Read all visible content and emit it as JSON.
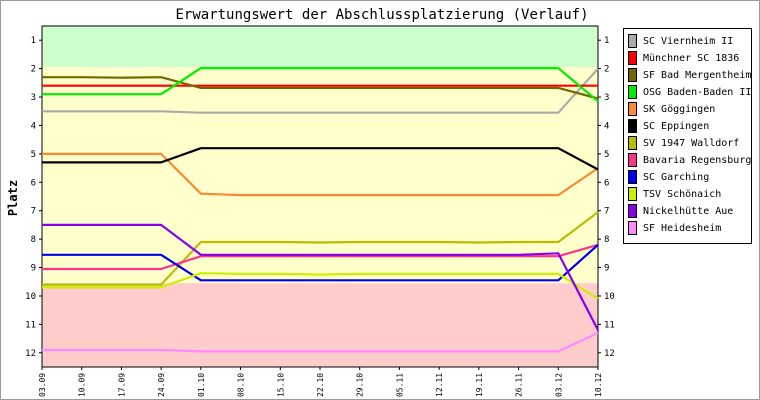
{
  "chart_data": {
    "type": "line",
    "title": "Erwartungswert der Abschlussplatzierung (Verlauf)",
    "ylabel": "Platz",
    "xlabel": "",
    "categories": [
      "03.09",
      "10.09",
      "17.09",
      "24.09",
      "01.10",
      "08.10",
      "15.10",
      "22.10",
      "29.10",
      "05.11",
      "12.11",
      "19.11",
      "26.11",
      "03.12",
      "10.12"
    ],
    "y_ticks": [
      1,
      2,
      3,
      4,
      5,
      6,
      7,
      8,
      9,
      10,
      11,
      12
    ],
    "ylim": [
      12.5,
      0.5
    ],
    "y_inverted": true,
    "grid": false,
    "legend_position": "right",
    "zones": [
      {
        "from": 0.5,
        "to": 1.95,
        "color": "#ccffcc"
      },
      {
        "from": 1.95,
        "to": 9.55,
        "color": "#ffffcc"
      },
      {
        "from": 9.55,
        "to": 12.5,
        "color": "#ffcccc"
      }
    ],
    "series": [
      {
        "name": "SC Viernheim II",
        "color": "#aaaaaa",
        "values": [
          3.5,
          3.5,
          3.5,
          3.5,
          3.55,
          3.55,
          3.55,
          3.55,
          3.55,
          3.55,
          3.55,
          3.55,
          3.55,
          3.55,
          2.0
        ]
      },
      {
        "name": "Münchner SC 1836",
        "color": "#ff0000",
        "values": [
          2.6,
          2.6,
          2.6,
          2.6,
          2.6,
          2.6,
          2.6,
          2.6,
          2.6,
          2.6,
          2.6,
          2.6,
          2.6,
          2.6,
          2.6
        ]
      },
      {
        "name": "SF Bad Mergentheim",
        "color": "#776600",
        "values": [
          2.3,
          2.3,
          2.32,
          2.3,
          2.68,
          2.68,
          2.68,
          2.68,
          2.68,
          2.68,
          2.68,
          2.68,
          2.68,
          2.68,
          3.05
        ]
      },
      {
        "name": "OSG Baden-Baden II",
        "color": "#00ee00",
        "values": [
          2.9,
          2.9,
          2.9,
          2.9,
          1.98,
          1.98,
          1.98,
          1.98,
          1.98,
          1.98,
          1.98,
          1.98,
          1.98,
          1.98,
          3.15
        ]
      },
      {
        "name": "SK Göggingen",
        "color": "#ff8833",
        "values": [
          5.0,
          5.0,
          5.0,
          5.0,
          6.4,
          6.45,
          6.45,
          6.45,
          6.45,
          6.45,
          6.45,
          6.45,
          6.45,
          6.45,
          5.5
        ]
      },
      {
        "name": "SC Eppingen",
        "color": "#000000",
        "values": [
          5.3,
          5.3,
          5.3,
          5.3,
          4.8,
          4.8,
          4.8,
          4.8,
          4.8,
          4.8,
          4.8,
          4.8,
          4.8,
          4.8,
          5.55
        ]
      },
      {
        "name": "SV 1947 Walldorf",
        "color": "#bbbb00",
        "values": [
          9.6,
          9.6,
          9.6,
          9.6,
          8.1,
          8.1,
          8.1,
          8.12,
          8.1,
          8.1,
          8.1,
          8.12,
          8.1,
          8.1,
          7.05
        ]
      },
      {
        "name": "Bavaria Regensburg",
        "color": "#ff3388",
        "values": [
          9.05,
          9.05,
          9.05,
          9.05,
          8.6,
          8.6,
          8.6,
          8.6,
          8.6,
          8.6,
          8.6,
          8.6,
          8.6,
          8.6,
          8.2
        ]
      },
      {
        "name": "SC Garching",
        "color": "#0000ee",
        "values": [
          8.55,
          8.55,
          8.55,
          8.55,
          9.45,
          9.45,
          9.45,
          9.45,
          9.45,
          9.45,
          9.45,
          9.45,
          9.45,
          9.45,
          8.2
        ]
      },
      {
        "name": "TSV Schönaich",
        "color": "#ccee00",
        "values": [
          9.7,
          9.7,
          9.7,
          9.7,
          9.2,
          9.22,
          9.22,
          9.25,
          9.22,
          9.22,
          9.22,
          9.22,
          9.22,
          9.22,
          10.1
        ]
      },
      {
        "name": "Nickelhütte Aue",
        "color": "#8800ee",
        "values": [
          7.5,
          7.5,
          7.5,
          7.5,
          8.55,
          8.55,
          8.55,
          8.55,
          8.55,
          8.55,
          8.55,
          8.55,
          8.55,
          8.5,
          11.2
        ]
      },
      {
        "name": "SF Heidesheim",
        "color": "#ff88ff",
        "values": [
          11.9,
          11.9,
          11.9,
          11.9,
          11.95,
          11.95,
          11.95,
          11.95,
          11.95,
          11.95,
          11.95,
          11.95,
          11.95,
          11.95,
          11.3
        ]
      }
    ]
  }
}
